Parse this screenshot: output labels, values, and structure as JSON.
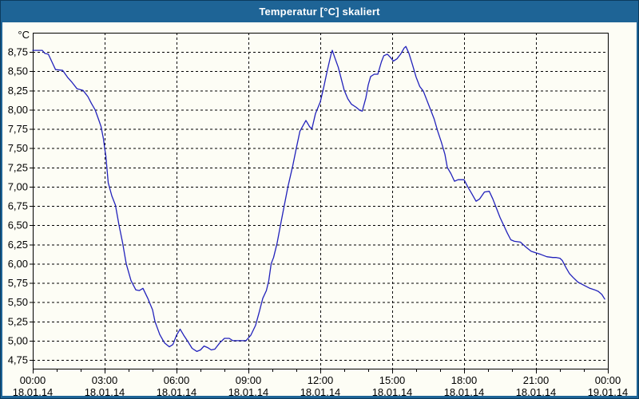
{
  "window": {
    "title": "Temperatur [°C] skaliert"
  },
  "colors": {
    "titlebar": "#1E6496",
    "window_border": "#1E6496",
    "background": "#FDFDF5",
    "line": "#2222BB",
    "grid": "#000000",
    "axis": "#000000",
    "text": "#000000"
  },
  "chart_data": {
    "type": "line",
    "title": "Temperatur [°C] skaliert",
    "xlabel": "",
    "ylabel": "°C",
    "grid": "dashed",
    "legend": "none",
    "xlim_hours": [
      0,
      24
    ],
    "ylim": [
      4.64,
      9.0
    ],
    "x_minor_tick_every_hours": 1,
    "x_major_tick_every_hours": 3,
    "y_ticks": {
      "values": [
        8.75,
        8.5,
        8.25,
        8.0,
        7.75,
        7.5,
        7.25,
        7.0,
        6.75,
        6.5,
        6.25,
        6.0,
        5.75,
        5.5,
        5.25,
        5.0,
        4.75
      ],
      "labels": [
        "8,75",
        "8,50",
        "8,25",
        "8,00",
        "7,75",
        "7,50",
        "7,25",
        "7,00",
        "6,75",
        "6,50",
        "6,25",
        "6,00",
        "5,75",
        "5,50",
        "5,25",
        "5,00",
        "4,75"
      ]
    },
    "x_ticks": [
      {
        "hour": 0,
        "time": "00:00",
        "date": "18.01.14"
      },
      {
        "hour": 3,
        "time": "03:00",
        "date": "18.01.14"
      },
      {
        "hour": 6,
        "time": "06:00",
        "date": "18.01.14"
      },
      {
        "hour": 9,
        "time": "09:00",
        "date": "18.01.14"
      },
      {
        "hour": 12,
        "time": "12:00",
        "date": "18.01.14"
      },
      {
        "hour": 15,
        "time": "15:00",
        "date": "18.01.14"
      },
      {
        "hour": 18,
        "time": "18:00",
        "date": "18.01.14"
      },
      {
        "hour": 21,
        "time": "21:00",
        "date": "18.01.14"
      },
      {
        "hour": 24,
        "time": "00:00",
        "date": "19.01.14"
      }
    ],
    "series": [
      {
        "name": "Temperatur",
        "color": "#2222BB",
        "points": [
          [
            0.0,
            8.77
          ],
          [
            0.4,
            8.77
          ],
          [
            0.5,
            8.73
          ],
          [
            0.65,
            8.72
          ],
          [
            0.8,
            8.62
          ],
          [
            0.95,
            8.52
          ],
          [
            1.25,
            8.51
          ],
          [
            1.45,
            8.42
          ],
          [
            1.65,
            8.35
          ],
          [
            1.85,
            8.27
          ],
          [
            2.1,
            8.25
          ],
          [
            2.3,
            8.17
          ],
          [
            2.45,
            8.08
          ],
          [
            2.6,
            8.0
          ],
          [
            2.75,
            7.87
          ],
          [
            2.85,
            7.78
          ],
          [
            2.95,
            7.62
          ],
          [
            3.0,
            7.5
          ],
          [
            3.05,
            7.4
          ],
          [
            3.15,
            7.05
          ],
          [
            3.3,
            6.88
          ],
          [
            3.45,
            6.76
          ],
          [
            3.6,
            6.5
          ],
          [
            3.75,
            6.27
          ],
          [
            3.9,
            6.0
          ],
          [
            4.1,
            5.78
          ],
          [
            4.3,
            5.66
          ],
          [
            4.45,
            5.65
          ],
          [
            4.6,
            5.68
          ],
          [
            4.8,
            5.55
          ],
          [
            5.0,
            5.4
          ],
          [
            5.1,
            5.25
          ],
          [
            5.3,
            5.08
          ],
          [
            5.5,
            4.97
          ],
          [
            5.7,
            4.92
          ],
          [
            5.85,
            4.95
          ],
          [
            6.0,
            5.07
          ],
          [
            6.15,
            5.15
          ],
          [
            6.3,
            5.07
          ],
          [
            6.45,
            5.0
          ],
          [
            6.65,
            4.9
          ],
          [
            6.85,
            4.86
          ],
          [
            7.0,
            4.88
          ],
          [
            7.15,
            4.93
          ],
          [
            7.3,
            4.91
          ],
          [
            7.45,
            4.88
          ],
          [
            7.6,
            4.89
          ],
          [
            7.8,
            4.97
          ],
          [
            8.0,
            5.03
          ],
          [
            8.2,
            5.03
          ],
          [
            8.35,
            5.0
          ],
          [
            8.9,
            5.0
          ],
          [
            9.1,
            5.07
          ],
          [
            9.3,
            5.2
          ],
          [
            9.45,
            5.37
          ],
          [
            9.6,
            5.55
          ],
          [
            9.75,
            5.65
          ],
          [
            9.85,
            5.78
          ],
          [
            9.95,
            6.0
          ],
          [
            10.05,
            6.08
          ],
          [
            10.2,
            6.27
          ],
          [
            10.35,
            6.52
          ],
          [
            10.5,
            6.76
          ],
          [
            10.65,
            7.0
          ],
          [
            10.85,
            7.27
          ],
          [
            11.0,
            7.5
          ],
          [
            11.15,
            7.72
          ],
          [
            11.4,
            7.86
          ],
          [
            11.55,
            7.78
          ],
          [
            11.65,
            7.75
          ],
          [
            11.8,
            7.95
          ],
          [
            12.0,
            8.1
          ],
          [
            12.15,
            8.3
          ],
          [
            12.3,
            8.52
          ],
          [
            12.45,
            8.72
          ],
          [
            12.5,
            8.77
          ],
          [
            12.6,
            8.68
          ],
          [
            12.75,
            8.55
          ],
          [
            12.9,
            8.37
          ],
          [
            13.0,
            8.25
          ],
          [
            13.15,
            8.14
          ],
          [
            13.3,
            8.07
          ],
          [
            13.5,
            8.03
          ],
          [
            13.65,
            7.99
          ],
          [
            13.75,
            7.98
          ],
          [
            13.9,
            8.15
          ],
          [
            14.0,
            8.32
          ],
          [
            14.1,
            8.43
          ],
          [
            14.25,
            8.46
          ],
          [
            14.4,
            8.46
          ],
          [
            14.55,
            8.62
          ],
          [
            14.65,
            8.7
          ],
          [
            14.8,
            8.72
          ],
          [
            14.95,
            8.67
          ],
          [
            15.05,
            8.63
          ],
          [
            15.2,
            8.66
          ],
          [
            15.35,
            8.72
          ],
          [
            15.5,
            8.8
          ],
          [
            15.57,
            8.82
          ],
          [
            15.7,
            8.73
          ],
          [
            15.85,
            8.58
          ],
          [
            16.0,
            8.42
          ],
          [
            16.15,
            8.3
          ],
          [
            16.3,
            8.24
          ],
          [
            16.45,
            8.12
          ],
          [
            16.6,
            8.0
          ],
          [
            16.75,
            7.88
          ],
          [
            16.9,
            7.72
          ],
          [
            17.05,
            7.58
          ],
          [
            17.2,
            7.42
          ],
          [
            17.3,
            7.25
          ],
          [
            17.45,
            7.17
          ],
          [
            17.6,
            7.07
          ],
          [
            17.75,
            7.09
          ],
          [
            18.0,
            7.09
          ],
          [
            18.15,
            7.0
          ],
          [
            18.3,
            6.92
          ],
          [
            18.5,
            6.81
          ],
          [
            18.65,
            6.84
          ],
          [
            18.85,
            6.93
          ],
          [
            19.05,
            6.94
          ],
          [
            19.2,
            6.84
          ],
          [
            19.35,
            6.72
          ],
          [
            19.5,
            6.6
          ],
          [
            19.65,
            6.5
          ],
          [
            19.8,
            6.4
          ],
          [
            19.95,
            6.31
          ],
          [
            20.1,
            6.29
          ],
          [
            20.35,
            6.28
          ],
          [
            20.6,
            6.21
          ],
          [
            20.8,
            6.16
          ],
          [
            21.0,
            6.14
          ],
          [
            21.2,
            6.12
          ],
          [
            21.45,
            6.09
          ],
          [
            21.7,
            6.08
          ],
          [
            21.85,
            6.08
          ],
          [
            22.0,
            6.07
          ],
          [
            22.1,
            6.04
          ],
          [
            22.25,
            5.95
          ],
          [
            22.4,
            5.87
          ],
          [
            22.55,
            5.82
          ],
          [
            22.75,
            5.76
          ],
          [
            23.0,
            5.72
          ],
          [
            23.25,
            5.68
          ],
          [
            23.45,
            5.66
          ],
          [
            23.6,
            5.64
          ],
          [
            23.75,
            5.6
          ],
          [
            23.87,
            5.54
          ]
        ]
      }
    ]
  }
}
